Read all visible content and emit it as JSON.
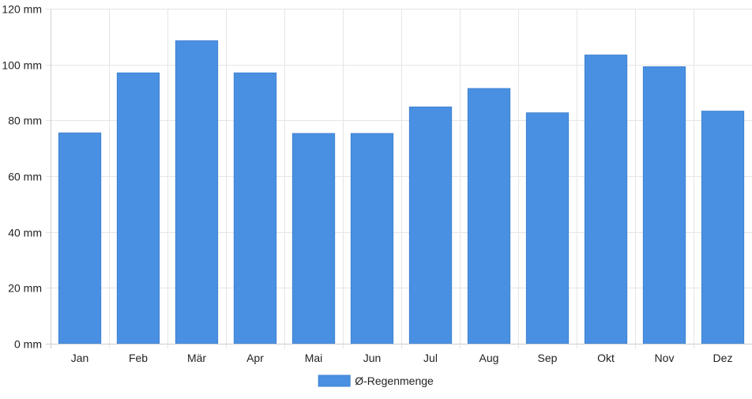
{
  "chart_data": {
    "type": "bar",
    "categories": [
      "Jan",
      "Feb",
      "Mär",
      "Apr",
      "Mai",
      "Jun",
      "Jul",
      "Aug",
      "Sep",
      "Okt",
      "Nov",
      "Dez"
    ],
    "series": [
      {
        "name": "Ø-Regenmenge",
        "values": [
          75.5,
          97,
          108.5,
          97,
          75.3,
          75.3,
          84.8,
          91.4,
          82.7,
          103.4,
          99.2,
          83.3
        ]
      }
    ],
    "unit": "mm",
    "ylim": [
      0,
      120
    ],
    "yticks": [
      0,
      20,
      40,
      60,
      80,
      100,
      120
    ],
    "ytick_labels": [
      "0 mm",
      "20 mm",
      "40 mm",
      "60 mm",
      "80 mm",
      "100 mm",
      "120 mm"
    ],
    "grid": true,
    "legend_position": "bottom-center",
    "title": "",
    "xlabel": "",
    "ylabel": ""
  },
  "colors": {
    "bar_fill": "#4a90e2",
    "bar_stroke": "#3f82d0"
  }
}
